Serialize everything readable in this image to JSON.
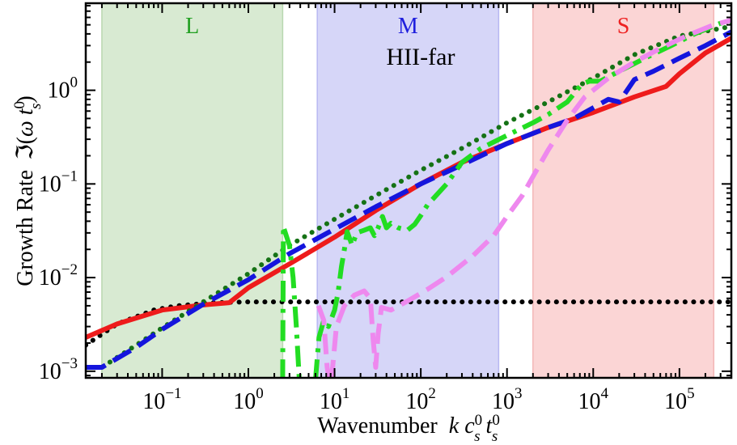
{
  "chart_data": {
    "type": "line",
    "annotation": "HII-far",
    "xlabel": {
      "main": "Wavenumber",
      "var": "k c",
      "sup1": "0",
      "sub1": "s",
      "var2": " t",
      "sup2": "0",
      "sub2": "s"
    },
    "ylabel": {
      "main": "Growth Rate",
      "script": "ℑ",
      "open": "(",
      "omega": "ω",
      "var": " t",
      "sup": "0",
      "sub": "s",
      "close": ")"
    },
    "x_scale": "log",
    "y_scale": "log",
    "xlim": [
      0.013,
      400000
    ],
    "ylim": [
      0.00085,
      8.5
    ],
    "x_ticks": [
      {
        "value": 0.1,
        "base": "10",
        "exp": "−1"
      },
      {
        "value": 1,
        "base": "10",
        "exp": "0"
      },
      {
        "value": 10,
        "base": "10",
        "exp": "1"
      },
      {
        "value": 100,
        "base": "10",
        "exp": "2"
      },
      {
        "value": 1000,
        "base": "10",
        "exp": "3"
      },
      {
        "value": 10000,
        "base": "10",
        "exp": "4"
      },
      {
        "value": 100000,
        "base": "10",
        "exp": "5"
      }
    ],
    "y_ticks": [
      {
        "value": 0.001,
        "base": "10",
        "exp": "−3"
      },
      {
        "value": 0.01,
        "base": "10",
        "exp": "−2"
      },
      {
        "value": 0.1,
        "base": "10",
        "exp": "−1"
      },
      {
        "value": 1,
        "base": "10",
        "exp": "0"
      }
    ],
    "regions": [
      {
        "label": "L",
        "x_range": [
          0.02,
          2.5
        ],
        "fill": "#d8ead2",
        "edge": "#b9d7b0",
        "label_color": "#22a022"
      },
      {
        "label": "M",
        "x_range": [
          6.3,
          800
        ],
        "fill": "#d6d6f8",
        "edge": "#b8b8f2",
        "label_color": "#2020dd"
      },
      {
        "label": "S",
        "x_range": [
          2000,
          250000
        ],
        "fill": "#fbd5d5",
        "edge": "#f3b7b7",
        "label_color": "#ee2222"
      }
    ],
    "series": [
      {
        "name": "black-dotted",
        "color": "#000000",
        "dash": "dotted",
        "width": 6,
        "points": [
          [
            0.013,
            0.0019
          ],
          [
            0.03,
            0.0032
          ],
          [
            0.08,
            0.0045
          ],
          [
            0.15,
            0.005
          ],
          [
            0.4,
            0.0054
          ],
          [
            1,
            0.0055
          ],
          [
            400000,
            0.0055
          ]
        ]
      },
      {
        "name": "red-solid",
        "color": "#ee1b1b",
        "dash": "solid",
        "width": 6,
        "points": [
          [
            0.013,
            0.0023
          ],
          [
            0.03,
            0.0032
          ],
          [
            0.1,
            0.0045
          ],
          [
            0.3,
            0.0051
          ],
          [
            0.6,
            0.0054
          ],
          [
            1,
            0.0078
          ],
          [
            3,
            0.014
          ],
          [
            10,
            0.027
          ],
          [
            30,
            0.052
          ],
          [
            100,
            0.1
          ],
          [
            300,
            0.17
          ],
          [
            1000,
            0.27
          ],
          [
            3000,
            0.4
          ],
          [
            10000,
            0.58
          ],
          [
            30000,
            0.85
          ],
          [
            70000,
            1.1
          ],
          [
            100000,
            1.5
          ],
          [
            200000,
            2.5
          ],
          [
            400000,
            3.6
          ]
        ]
      },
      {
        "name": "darkgreen-dotted",
        "color": "#157215",
        "dash": "dotted",
        "width": 6,
        "points": [
          [
            0.013,
            0.0011
          ],
          [
            0.02,
            0.0011
          ],
          [
            0.05,
            0.0019
          ],
          [
            0.1,
            0.0029
          ],
          [
            0.3,
            0.0055
          ],
          [
            1,
            0.011
          ],
          [
            3,
            0.022
          ],
          [
            10,
            0.042
          ],
          [
            30,
            0.075
          ],
          [
            100,
            0.14
          ],
          [
            300,
            0.24
          ],
          [
            1000,
            0.45
          ],
          [
            3000,
            0.75
          ],
          [
            10000,
            1.35
          ],
          [
            30000,
            2.4
          ],
          [
            100000,
            3.8
          ],
          [
            400000,
            4.8
          ]
        ]
      },
      {
        "name": "blue-dashed",
        "color": "#1515dd",
        "dash": "dashed",
        "width": 6,
        "points": [
          [
            0.013,
            0.0011
          ],
          [
            0.02,
            0.0011
          ],
          [
            0.05,
            0.0018
          ],
          [
            0.1,
            0.0028
          ],
          [
            0.3,
            0.0052
          ],
          [
            1,
            0.0095
          ],
          [
            3,
            0.018
          ],
          [
            10,
            0.033
          ],
          [
            30,
            0.057
          ],
          [
            100,
            0.1
          ],
          [
            300,
            0.16
          ],
          [
            1000,
            0.27
          ],
          [
            3000,
            0.4
          ],
          [
            6000,
            0.5
          ],
          [
            10000,
            0.65
          ],
          [
            15000,
            0.8
          ],
          [
            20000,
            0.75
          ],
          [
            30000,
            1.3
          ],
          [
            50000,
            1.6
          ],
          [
            100000,
            2.2
          ],
          [
            200000,
            3.0
          ],
          [
            400000,
            4.2
          ]
        ]
      },
      {
        "name": "lime-dashdot",
        "color": "#22dd22",
        "dash": "dashdot",
        "width": 6,
        "segments": [
          [
            [
              2.6,
              0.033
            ],
            [
              3.0,
              0.022
            ],
            [
              3.3,
              0.01
            ],
            [
              3.6,
              0.003
            ],
            [
              3.9,
              0.0008
            ]
          ],
          [
            [
              2.5,
              0.0008
            ],
            [
              2.55,
              0.033
            ]
          ],
          [
            [
              6.0,
              0.0008
            ],
            [
              6.6,
              0.0023
            ],
            [
              7.5,
              0.0035
            ],
            [
              8.5,
              0.003
            ],
            [
              10,
              0.0045
            ],
            [
              11,
              0.007
            ],
            [
              12,
              0.013
            ],
            [
              13,
              0.02
            ],
            [
              14,
              0.031
            ],
            [
              16,
              0.022
            ],
            [
              18,
              0.03
            ],
            [
              22,
              0.032
            ],
            [
              26,
              0.034
            ],
            [
              29,
              0.028
            ],
            [
              32,
              0.034
            ],
            [
              36,
              0.045
            ],
            [
              40,
              0.034
            ],
            [
              45,
              0.038
            ],
            [
              55,
              0.034
            ],
            [
              70,
              0.032
            ],
            [
              85,
              0.037
            ],
            [
              100,
              0.046
            ],
            [
              120,
              0.06
            ],
            [
              150,
              0.075
            ],
            [
              200,
              0.1
            ],
            [
              300,
              0.17
            ],
            [
              500,
              0.24
            ],
            [
              1000,
              0.33
            ],
            [
              2000,
              0.45
            ],
            [
              3000,
              0.55
            ],
            [
              5000,
              0.75
            ],
            [
              7000,
              1.1
            ],
            [
              8000,
              1.2
            ],
            [
              9000,
              1.25
            ],
            [
              12000,
              1.25
            ],
            [
              20000,
              1.6
            ],
            [
              40000,
              2.2
            ],
            [
              80000,
              3.0
            ],
            [
              150000,
              4.0
            ],
            [
              300000,
              5.2
            ],
            [
              400000,
              5.3
            ]
          ]
        ]
      },
      {
        "name": "violet-dashed",
        "color": "#ee88ee",
        "dash": "dashed",
        "width": 6,
        "segments": [
          [
            [
              6.5,
              0.005
            ],
            [
              7.5,
              0.0035
            ],
            [
              8.2,
              0.0011
            ],
            [
              8.7,
              0.0008
            ]
          ],
          [
            [
              9.2,
              0.0008
            ],
            [
              10.5,
              0.003
            ],
            [
              13,
              0.005
            ],
            [
              17,
              0.0065
            ],
            [
              22,
              0.0072
            ],
            [
              26,
              0.006
            ],
            [
              28,
              0.0022
            ],
            [
              30,
              0.0011
            ],
            [
              32,
              0.0025
            ],
            [
              35,
              0.0048
            ],
            [
              45,
              0.0045
            ],
            [
              70,
              0.0056
            ],
            [
              120,
              0.0075
            ],
            [
              200,
              0.0102
            ],
            [
              400,
              0.017
            ],
            [
              700,
              0.028
            ],
            [
              1000,
              0.045
            ],
            [
              1500,
              0.075
            ],
            [
              2000,
              0.12
            ],
            [
              3000,
              0.23
            ],
            [
              5000,
              0.48
            ],
            [
              8000,
              0.85
            ],
            [
              15000,
              1.35
            ],
            [
              30000,
              2.0
            ],
            [
              60000,
              2.8
            ],
            [
              120000,
              3.8
            ],
            [
              250000,
              5.0
            ],
            [
              400000,
              5.6
            ]
          ]
        ]
      }
    ]
  }
}
